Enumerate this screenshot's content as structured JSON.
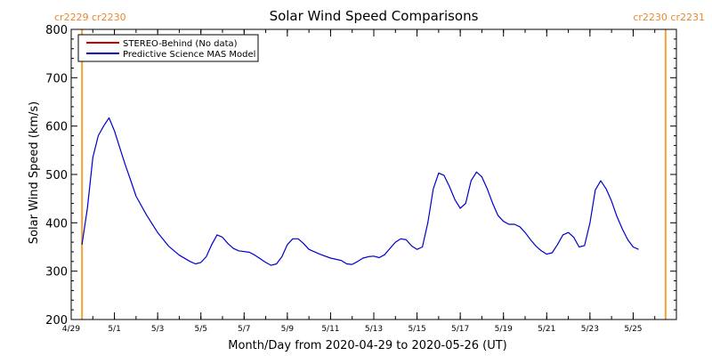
{
  "chart_data": {
    "type": "line",
    "title": "Solar Wind Speed Comparisons",
    "xlabel": "Month/Day from 2020-04-29 to 2020-05-26 (UT)",
    "ylabel": "Solar Wind Speed (km/s)",
    "ylim": [
      200,
      800
    ],
    "yticks": [
      200,
      300,
      400,
      500,
      600,
      700,
      800
    ],
    "xlim": [
      "2020-04-29",
      "2020-05-27"
    ],
    "xticks": [
      {
        "date": "2020-04-29",
        "label": "4/29"
      },
      {
        "date": "2020-05-01",
        "label": "5/1"
      },
      {
        "date": "2020-05-03",
        "label": "5/3"
      },
      {
        "date": "2020-05-05",
        "label": "5/5"
      },
      {
        "date": "2020-05-07",
        "label": "5/7"
      },
      {
        "date": "2020-05-09",
        "label": "5/9"
      },
      {
        "date": "2020-05-11",
        "label": "5/11"
      },
      {
        "date": "2020-05-13",
        "label": "5/13"
      },
      {
        "date": "2020-05-15",
        "label": "5/15"
      },
      {
        "date": "2020-05-17",
        "label": "5/17"
      },
      {
        "date": "2020-05-19",
        "label": "5/19"
      },
      {
        "date": "2020-05-21",
        "label": "5/21"
      },
      {
        "date": "2020-05-23",
        "label": "5/23"
      },
      {
        "date": "2020-05-25",
        "label": "5/25"
      }
    ],
    "legend_position": "top-left",
    "series": [
      {
        "name": "STEREO-Behind (No data)",
        "color": "#cc0000",
        "points": []
      },
      {
        "name": "Predictive Science MAS Model",
        "color": "#0000cc",
        "points": [
          [
            "2020-04-29 12:00",
            355
          ],
          [
            "2020-04-29 18:00",
            430
          ],
          [
            "2020-04-30 00:00",
            535
          ],
          [
            "2020-04-30 06:00",
            580
          ],
          [
            "2020-04-30 12:00",
            600
          ],
          [
            "2020-04-30 18:00",
            617
          ],
          [
            "2020-05-01 00:00",
            590
          ],
          [
            "2020-05-01 06:00",
            555
          ],
          [
            "2020-05-01 12:00",
            520
          ],
          [
            "2020-05-01 18:00",
            488
          ],
          [
            "2020-05-02 00:00",
            455
          ],
          [
            "2020-05-02 12:00",
            415
          ],
          [
            "2020-05-03 00:00",
            380
          ],
          [
            "2020-05-03 12:00",
            352
          ],
          [
            "2020-05-04 00:00",
            333
          ],
          [
            "2020-05-04 12:00",
            320
          ],
          [
            "2020-05-04 18:00",
            315
          ],
          [
            "2020-05-05 00:00",
            318
          ],
          [
            "2020-05-05 06:00",
            330
          ],
          [
            "2020-05-05 12:00",
            355
          ],
          [
            "2020-05-05 18:00",
            375
          ],
          [
            "2020-05-06 00:00",
            370
          ],
          [
            "2020-05-06 06:00",
            357
          ],
          [
            "2020-05-06 12:00",
            347
          ],
          [
            "2020-05-06 18:00",
            342
          ],
          [
            "2020-05-07 06:00",
            339
          ],
          [
            "2020-05-07 12:00",
            333
          ],
          [
            "2020-05-08 00:00",
            318
          ],
          [
            "2020-05-08 06:00",
            312
          ],
          [
            "2020-05-08 12:00",
            315
          ],
          [
            "2020-05-08 18:00",
            330
          ],
          [
            "2020-05-09 00:00",
            355
          ],
          [
            "2020-05-09 06:00",
            367
          ],
          [
            "2020-05-09 12:00",
            367
          ],
          [
            "2020-05-09 18:00",
            357
          ],
          [
            "2020-05-10 00:00",
            345
          ],
          [
            "2020-05-10 12:00",
            335
          ],
          [
            "2020-05-11 00:00",
            327
          ],
          [
            "2020-05-11 12:00",
            322
          ],
          [
            "2020-05-11 18:00",
            315
          ],
          [
            "2020-05-12 00:00",
            314
          ],
          [
            "2020-05-12 06:00",
            320
          ],
          [
            "2020-05-12 12:00",
            327
          ],
          [
            "2020-05-12 18:00",
            330
          ],
          [
            "2020-05-13 00:00",
            331
          ],
          [
            "2020-05-13 06:00",
            328
          ],
          [
            "2020-05-13 12:00",
            334
          ],
          [
            "2020-05-13 18:00",
            347
          ],
          [
            "2020-05-14 00:00",
            360
          ],
          [
            "2020-05-14 06:00",
            367
          ],
          [
            "2020-05-14 12:00",
            365
          ],
          [
            "2020-05-14 18:00",
            352
          ],
          [
            "2020-05-15 00:00",
            345
          ],
          [
            "2020-05-15 06:00",
            350
          ],
          [
            "2020-05-15 12:00",
            400
          ],
          [
            "2020-05-15 18:00",
            470
          ],
          [
            "2020-05-16 00:00",
            503
          ],
          [
            "2020-05-16 06:00",
            498
          ],
          [
            "2020-05-16 12:00",
            475
          ],
          [
            "2020-05-16 18:00",
            448
          ],
          [
            "2020-05-17 00:00",
            430
          ],
          [
            "2020-05-17 06:00",
            440
          ],
          [
            "2020-05-17 12:00",
            487
          ],
          [
            "2020-05-17 18:00",
            505
          ],
          [
            "2020-05-18 00:00",
            495
          ],
          [
            "2020-05-18 06:00",
            470
          ],
          [
            "2020-05-18 12:00",
            440
          ],
          [
            "2020-05-18 18:00",
            415
          ],
          [
            "2020-05-19 00:00",
            403
          ],
          [
            "2020-05-19 06:00",
            397
          ],
          [
            "2020-05-19 12:00",
            397
          ],
          [
            "2020-05-19 18:00",
            392
          ],
          [
            "2020-05-20 00:00",
            380
          ],
          [
            "2020-05-20 06:00",
            365
          ],
          [
            "2020-05-20 12:00",
            352
          ],
          [
            "2020-05-20 18:00",
            342
          ],
          [
            "2020-05-21 00:00",
            335
          ],
          [
            "2020-05-21 06:00",
            338
          ],
          [
            "2020-05-21 12:00",
            355
          ],
          [
            "2020-05-21 18:00",
            375
          ],
          [
            "2020-05-22 00:00",
            380
          ],
          [
            "2020-05-22 06:00",
            370
          ],
          [
            "2020-05-22 12:00",
            350
          ],
          [
            "2020-05-22 18:00",
            353
          ],
          [
            "2020-05-23 00:00",
            400
          ],
          [
            "2020-05-23 06:00",
            468
          ],
          [
            "2020-05-23 12:00",
            487
          ],
          [
            "2020-05-23 18:00",
            470
          ],
          [
            "2020-05-24 00:00",
            445
          ],
          [
            "2020-05-24 06:00",
            413
          ],
          [
            "2020-05-24 12:00",
            387
          ],
          [
            "2020-05-24 18:00",
            365
          ],
          [
            "2020-05-25 00:00",
            350
          ],
          [
            "2020-05-25 06:00",
            345
          ]
        ]
      }
    ],
    "carrington_markers": [
      {
        "label": "cr2229 cr2230",
        "date": "2020-04-29 12:00",
        "color": "#f5a033",
        "label_side": "left"
      },
      {
        "label": "cr2230 cr2231",
        "date": "2020-05-26 12:00",
        "color": "#f5a033",
        "label_side": "right"
      }
    ]
  }
}
